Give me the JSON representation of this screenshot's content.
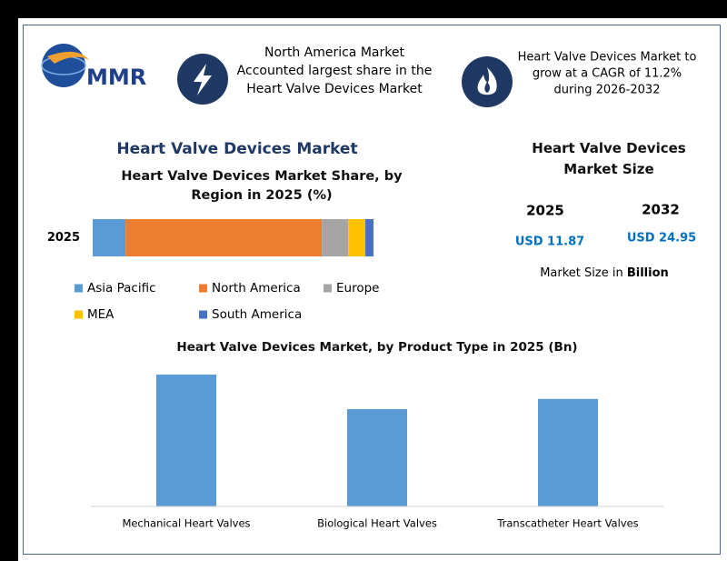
{
  "header": {
    "logo": "MMR",
    "items": [
      {
        "lines": [
          "North America Market",
          "Accounted largest share in the",
          "Heart Valve Devices Market"
        ]
      },
      {
        "lines": [
          "Heart Valve Devices Market to",
          "grow at a CAGR of 11.2%",
          "during 2026-2032"
        ]
      }
    ]
  },
  "main_title": "Heart Valve Devices Market",
  "market_size": {
    "title": "Heart Valve Devices Market Size",
    "years": [
      "2025",
      "2032"
    ],
    "values": [
      "USD 11.87",
      "USD 24.95"
    ],
    "note": "Market Size in",
    "note_unit": "Billion"
  },
  "chart_data": [
    {
      "type": "bar",
      "orientation": "horizontal",
      "stacked": true,
      "title": "Heart Valve Devices Market Share, by Region in 2025 (%)",
      "categories": [
        "2025"
      ],
      "xlim": [
        0,
        100
      ],
      "series": [
        {
          "name": "Asia Pacific",
          "color": "#5b9bd5",
          "values": [
            11.7
          ]
        },
        {
          "name": "North America",
          "color": "#ed7d31",
          "values": [
            69.9
          ]
        },
        {
          "name": "Europe",
          "color": "#a5a5a5",
          "values": [
            9.4
          ]
        },
        {
          "name": "MEA",
          "color": "#ffc000",
          "values": [
            6.1
          ]
        },
        {
          "name": "South America",
          "color": "#4472c4",
          "values": [
            2.9
          ]
        }
      ]
    },
    {
      "type": "bar",
      "orientation": "vertical",
      "title": "Heart Valve Devices Market, by Product Type in 2025 (Bn)",
      "categories": [
        "Mechanical Heart Valves",
        "Biological Heart Valves",
        "Transcatheter Heart Valves"
      ],
      "values": [
        4.65,
        3.43,
        3.79
      ],
      "color": "#5b9bd5",
      "ylim": [
        0,
        5
      ]
    }
  ]
}
